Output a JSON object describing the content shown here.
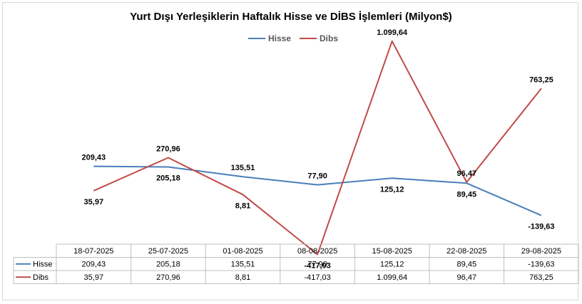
{
  "chart_data": {
    "type": "line",
    "title": "Yurt Dışı Yerleşiklerin Haftalık Hisse ve DİBS İşlemleri (Milyon$)",
    "categories": [
      "18-07-2025",
      "25-07-2025",
      "01-08-2025",
      "08-08-2025",
      "15-08-2025",
      "22-08-2025",
      "29-08-2025"
    ],
    "legend_position": "top",
    "grid": false,
    "data_table": true,
    "series": [
      {
        "name": "Hisse",
        "color": "#4a7ebb",
        "values": [
          209.43,
          205.18,
          135.51,
          77.9,
          125.12,
          89.45,
          -139.63
        ],
        "labels": [
          "209,43",
          "205,18",
          "135,51",
          "77,90",
          "125,12",
          "89,45",
          "-139,63"
        ]
      },
      {
        "name": "Dibs",
        "color": "#be4b48",
        "values": [
          35.97,
          270.96,
          8.81,
          -417.03,
          1099.64,
          96.47,
          763.25
        ],
        "labels": [
          "35,97",
          "270,96",
          "8,81",
          "-417,03",
          "1.099,64",
          "96,47",
          "763,25"
        ]
      }
    ]
  }
}
